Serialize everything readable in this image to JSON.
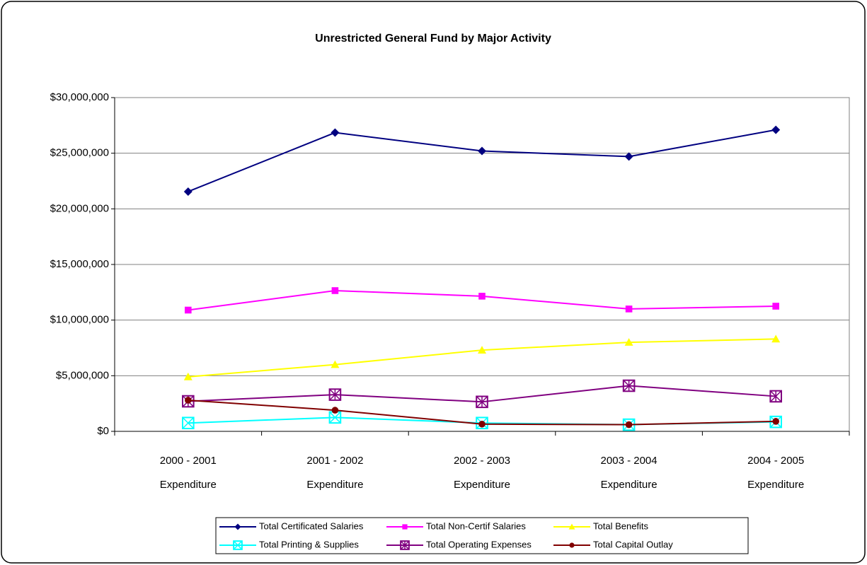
{
  "chart_data": {
    "type": "line",
    "title": "Unrestricted General Fund by Major Activity",
    "categories": [
      [
        "2000 - 2001",
        "Expenditure"
      ],
      [
        "2001 - 2002",
        "Expenditure"
      ],
      [
        "2002 - 2003",
        "Expenditure"
      ],
      [
        "2003 - 2004",
        "Expenditure"
      ],
      [
        "2004 - 2005",
        "Expenditure"
      ]
    ],
    "series": [
      {
        "name": "Total Certificated Salaries",
        "color": "#000080",
        "marker": "diamond",
        "values": [
          21550000,
          26850000,
          25200000,
          24700000,
          27100000
        ]
      },
      {
        "name": "Total Non-Certif Salaries",
        "color": "#ff00ff",
        "marker": "square",
        "values": [
          10900000,
          12650000,
          12150000,
          11000000,
          11250000
        ]
      },
      {
        "name": "Total Benefits",
        "color": "#ffff00",
        "marker": "triangle",
        "values": [
          4900000,
          6000000,
          7300000,
          8000000,
          8300000
        ]
      },
      {
        "name": "Total Printing & Supplies",
        "color": "#00ffff",
        "marker": "boxx",
        "values": [
          750000,
          1250000,
          750000,
          600000,
          850000
        ]
      },
      {
        "name": "Total Operating Expenses",
        "color": "#800080",
        "marker": "boxstar",
        "values": [
          2700000,
          3300000,
          2650000,
          4100000,
          3150000
        ]
      },
      {
        "name": "Total Capital Outlay",
        "color": "#800000",
        "marker": "circle",
        "values": [
          2800000,
          1900000,
          650000,
          600000,
          900000
        ]
      }
    ],
    "ylim": [
      0,
      30000000
    ],
    "yticks": [
      {
        "value": 0,
        "label": "$0"
      },
      {
        "value": 5000000,
        "label": "$5,000,000"
      },
      {
        "value": 10000000,
        "label": "$10,000,000"
      },
      {
        "value": 15000000,
        "label": "$15,000,000"
      },
      {
        "value": 20000000,
        "label": "$20,000,000"
      },
      {
        "value": 25000000,
        "label": "$25,000,000"
      },
      {
        "value": 30000000,
        "label": "$30,000,000"
      }
    ],
    "grid": true,
    "legend": "bottom"
  }
}
